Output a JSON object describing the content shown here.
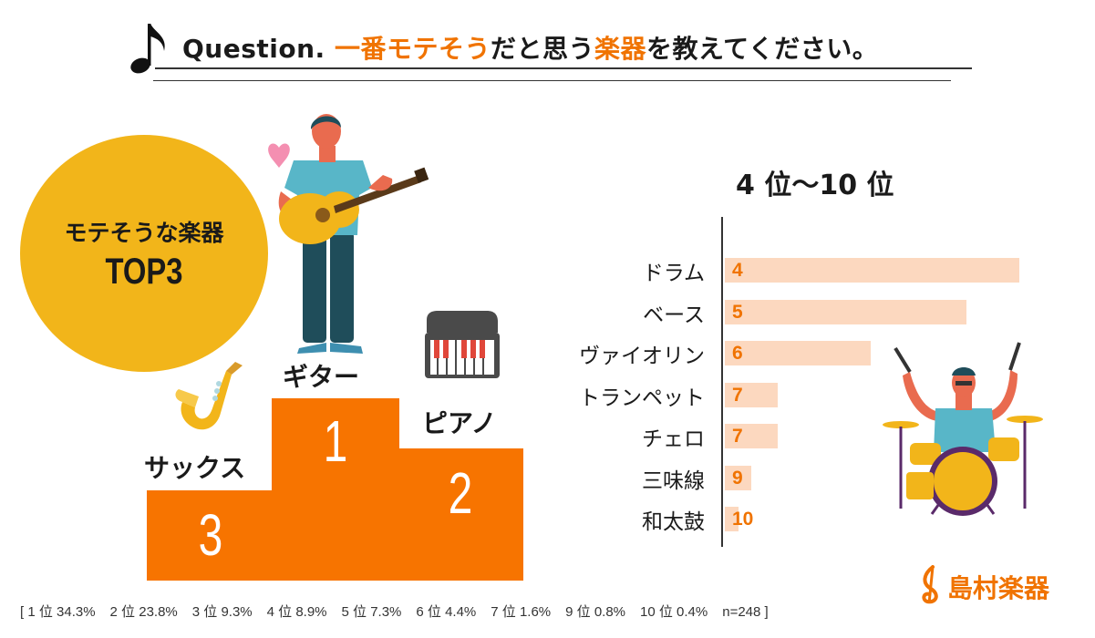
{
  "header": {
    "prefix": "Question.",
    "title_parts": [
      {
        "text": "一番モテそう",
        "highlight": true
      },
      {
        "text": "だと思う",
        "highlight": false
      },
      {
        "text": "楽器",
        "highlight": true
      },
      {
        "text": "を教えてください。",
        "highlight": false
      }
    ]
  },
  "badge": {
    "line1": "モテそうな楽器",
    "line2": "TOP3"
  },
  "podium": {
    "first": {
      "rank": "1",
      "label": "ギター"
    },
    "second": {
      "rank": "2",
      "label": "ピアノ"
    },
    "third": {
      "rank": "3",
      "label": "サックス"
    }
  },
  "colors": {
    "accent": "#f77400",
    "bar": "#fcd8bf",
    "badge": "#f2b51a",
    "text": "#1a1a1a"
  },
  "chart_data": {
    "type": "bar",
    "orientation": "horizontal",
    "title": "4 位〜10 位",
    "categories": [
      "ドラム",
      "ベース",
      "ヴァイオリン",
      "トランペット",
      "チェロ",
      "三味線",
      "和太鼓"
    ],
    "ranks": [
      "4",
      "5",
      "6",
      "7",
      "7",
      "9",
      "10"
    ],
    "values": [
      8.9,
      7.3,
      4.4,
      1.6,
      1.6,
      0.8,
      0.4
    ],
    "unit": "%",
    "xlim": [
      0,
      9.5
    ]
  },
  "footnote": {
    "items": [
      "[ 1 位 34.3%",
      "2 位 23.8%",
      "3 位 9.3%",
      "4 位 8.9%",
      "5 位 7.3%",
      "6 位 4.4%",
      "7 位 1.6%",
      "9 位 0.8%",
      "10 位 0.4%",
      "n=248 ]"
    ]
  },
  "logo": {
    "text": "島村楽器"
  }
}
